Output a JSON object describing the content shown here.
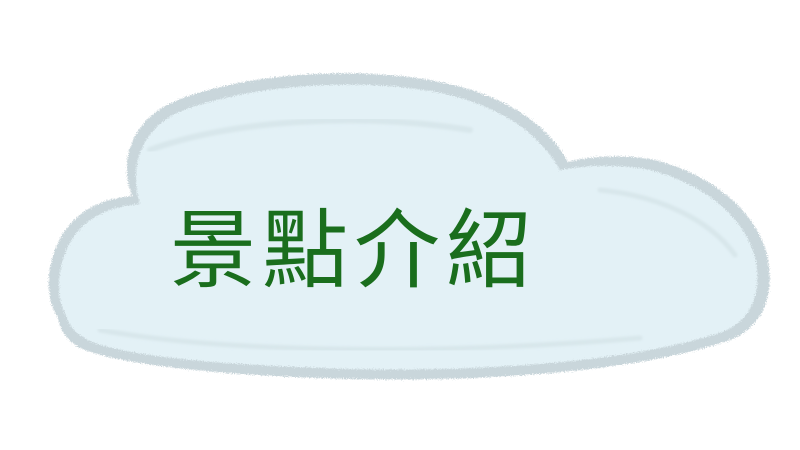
{
  "banner": {
    "title": "景點介紹",
    "icon": "cloud-shape",
    "colors": {
      "cloud_fill": "#e3f1f6",
      "cloud_edge": "#c9d6db",
      "cloud_shadow": "#b9c6cb",
      "title_text": "#1a6e1d",
      "background": "#ffffff"
    }
  }
}
